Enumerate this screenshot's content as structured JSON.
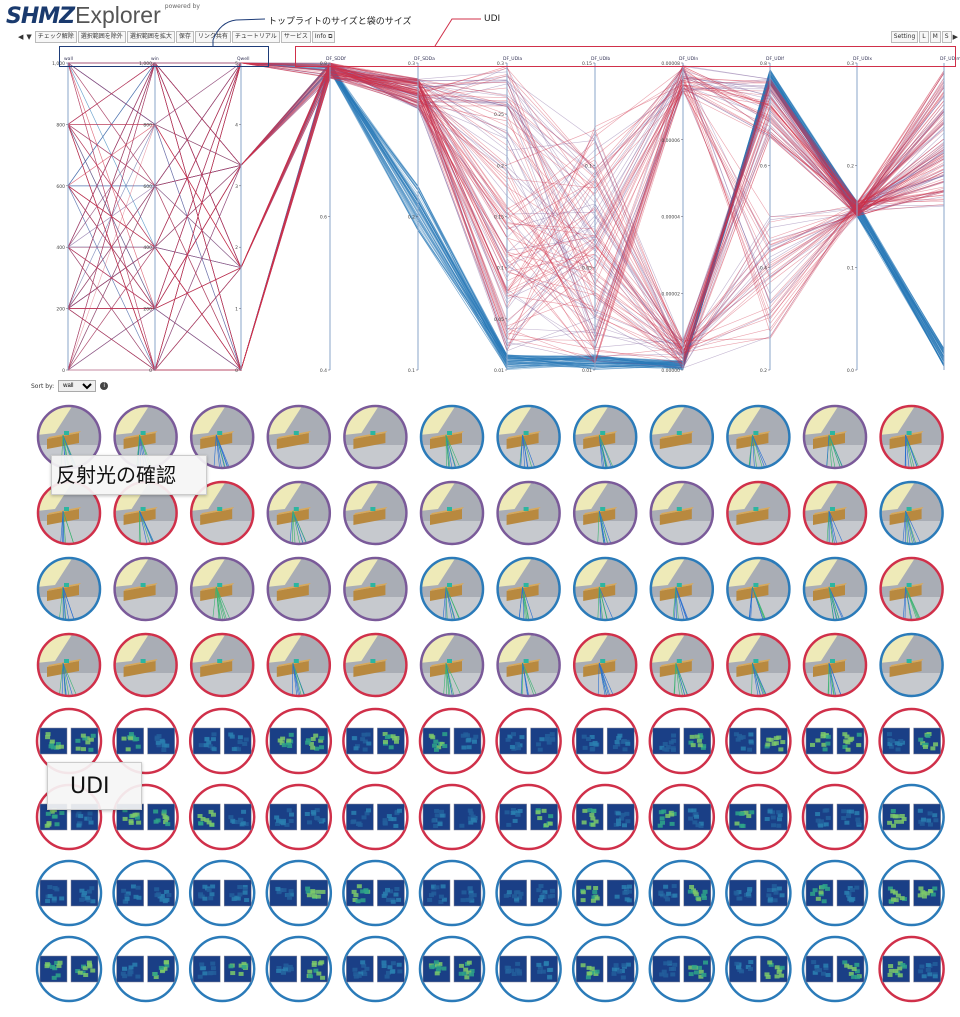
{
  "header": {
    "brand": "SHMZ",
    "product": "Explorer",
    "powered_by": "powered by"
  },
  "annotations": {
    "topright_label": "トップライトのサイズと袋のサイズ",
    "udi_label": "UDI",
    "reflection_label": "反射光の確認",
    "udi_images_label": "UDI"
  },
  "toolbar": {
    "nav_left": "◀",
    "nav_down": "▼",
    "buttons": [
      "チェック解除",
      "選択範囲を除外",
      "選択範囲を拡大",
      "保存",
      "リンク共有",
      "チュートリアル",
      "サービス",
      "Info ⧉"
    ]
  },
  "setting": {
    "label": "Setting",
    "buttons": [
      "L",
      "M",
      "S"
    ],
    "nav_right": "▶"
  },
  "sort": {
    "label": "Sort by:",
    "selected": "wall",
    "info": "i"
  },
  "colors": {
    "blue": "#2b7bb9",
    "red": "#d0304a",
    "purple": "#7a5a99",
    "navy": "#1e3c78"
  },
  "pcp": {
    "axes": [
      {
        "name": "wall",
        "ticks": [
          "1,000",
          "800",
          "600",
          "400",
          "200",
          "0"
        ]
      },
      {
        "name": "win",
        "ticks": [
          "1,000",
          "800",
          "600",
          "400",
          "200",
          "0"
        ]
      },
      {
        "name": "Qwell",
        "ticks": [
          "5",
          "4",
          "3",
          "2",
          "1",
          "0"
        ]
      },
      {
        "name": "DF_SDDf",
        "ticks": [
          "0.8",
          "0.6",
          "0.4"
        ]
      },
      {
        "name": "DF_SDDa",
        "ticks": [
          "0.3",
          "0.2",
          "0.1"
        ]
      },
      {
        "name": "DF_UDIa",
        "ticks": [
          "0.3",
          "0.25",
          "0.2",
          "0.15",
          "0.1",
          "0.05",
          "0.01"
        ]
      },
      {
        "name": "DF_UDIb",
        "ticks": [
          "0.15",
          "0.1",
          "0.05",
          "0.01"
        ]
      },
      {
        "name": "DF_UDIn",
        "ticks": [
          "0.00008",
          "0.00006",
          "0.00004",
          "0.00002",
          "0.00000"
        ]
      },
      {
        "name": "DF_UDIf",
        "ticks": [
          "0.8",
          "0.6",
          "0.4",
          "0.2"
        ]
      },
      {
        "name": "DF_UDIx",
        "ticks": [
          "0.3",
          "0.2",
          "0.1",
          "0.0"
        ]
      },
      {
        "name": "DF_UDIm",
        "ticks": []
      }
    ]
  },
  "thumbnails": {
    "render_rows": [
      [
        "purple",
        "purple",
        "purple",
        "purple",
        "purple",
        "blue",
        "blue",
        "blue",
        "blue",
        "blue",
        "purple",
        "red"
      ],
      [
        "red",
        "red",
        "red",
        "purple",
        "purple",
        "purple",
        "purple",
        "purple",
        "purple",
        "red",
        "red",
        "blue"
      ],
      [
        "blue",
        "purple",
        "purple",
        "purple",
        "purple",
        "blue",
        "blue",
        "blue",
        "blue",
        "blue",
        "blue",
        "red"
      ],
      [
        "red",
        "red",
        "red",
        "red",
        "red",
        "purple",
        "purple",
        "red",
        "red",
        "red",
        "red",
        "blue"
      ]
    ],
    "udi_rows": [
      [
        "red",
        "red",
        "red",
        "red",
        "red",
        "red",
        "red",
        "red",
        "red",
        "red",
        "red",
        "red"
      ],
      [
        "red",
        "red",
        "red",
        "red",
        "red",
        "red",
        "red",
        "red",
        "red",
        "red",
        "red",
        "blue"
      ],
      [
        "blue",
        "blue",
        "blue",
        "blue",
        "blue",
        "blue",
        "blue",
        "blue",
        "blue",
        "blue",
        "blue",
        "blue"
      ],
      [
        "blue",
        "blue",
        "blue",
        "blue",
        "blue",
        "blue",
        "blue",
        "blue",
        "blue",
        "blue",
        "blue",
        "red"
      ]
    ]
  }
}
